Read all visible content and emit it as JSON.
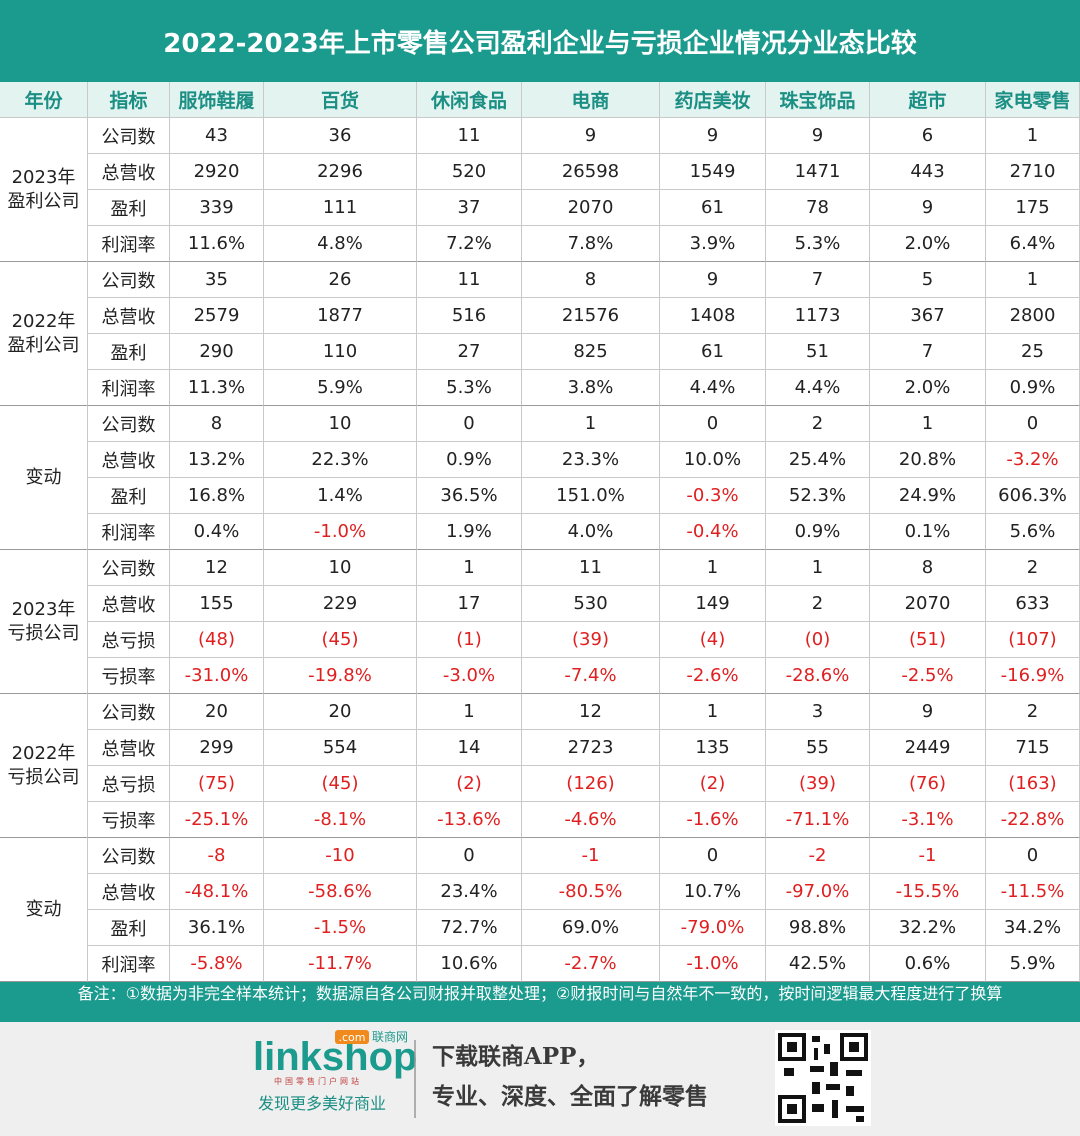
{
  "title": "2022-2023年上市零售公司盈利企业与亏损企业情况分业态比较",
  "table": {
    "header": [
      "年份",
      "指标",
      "服饰鞋履",
      "百货",
      "休闲食品",
      "电商",
      "药店美妆",
      "珠宝饰品",
      "超市",
      "家电零售"
    ],
    "groups": [
      {
        "label": [
          "2023年",
          "盈利公司"
        ],
        "rows": [
          {
            "metric": "公司数",
            "cells": [
              "43",
              "36",
              "11",
              "9",
              "9",
              "9",
              "6",
              "1"
            ]
          },
          {
            "metric": "总营收",
            "cells": [
              "2920",
              "2296",
              "520",
              "26598",
              "1549",
              "1471",
              "443",
              "2710"
            ]
          },
          {
            "metric": "盈利",
            "cells": [
              "339",
              "111",
              "37",
              "2070",
              "61",
              "78",
              "9",
              "175"
            ]
          },
          {
            "metric": "利润率",
            "cells": [
              "11.6%",
              "4.8%",
              "7.2%",
              "7.8%",
              "3.9%",
              "5.3%",
              "2.0%",
              "6.4%"
            ]
          }
        ]
      },
      {
        "label": [
          "2022年",
          "盈利公司"
        ],
        "rows": [
          {
            "metric": "公司数",
            "cells": [
              "35",
              "26",
              "11",
              "8",
              "9",
              "7",
              "5",
              "1"
            ]
          },
          {
            "metric": "总营收",
            "cells": [
              "2579",
              "1877",
              "516",
              "21576",
              "1408",
              "1173",
              "367",
              "2800"
            ]
          },
          {
            "metric": "盈利",
            "cells": [
              "290",
              "110",
              "27",
              "825",
              "61",
              "51",
              "7",
              "25"
            ]
          },
          {
            "metric": "利润率",
            "cells": [
              "11.3%",
              "5.9%",
              "5.3%",
              "3.8%",
              "4.4%",
              "4.4%",
              "2.0%",
              "0.9%"
            ]
          }
        ]
      },
      {
        "label": [
          "变动"
        ],
        "rows": [
          {
            "metric": "公司数",
            "cells": [
              "8",
              "10",
              "0",
              "1",
              "0",
              "2",
              "1",
              "0"
            ]
          },
          {
            "metric": "总营收",
            "cells": [
              "13.2%",
              "22.3%",
              "0.9%",
              "23.3%",
              "10.0%",
              "25.4%",
              "20.8%",
              "-3.2%"
            ]
          },
          {
            "metric": "盈利",
            "cells": [
              "16.8%",
              "1.4%",
              "36.5%",
              "151.0%",
              "-0.3%",
              "52.3%",
              "24.9%",
              "606.3%"
            ]
          },
          {
            "metric": "利润率",
            "cells": [
              "0.4%",
              "-1.0%",
              "1.9%",
              "4.0%",
              "-0.4%",
              "0.9%",
              "0.1%",
              "5.6%"
            ]
          }
        ]
      },
      {
        "label": [
          "2023年",
          "亏损公司"
        ],
        "rows": [
          {
            "metric": "公司数",
            "cells": [
              "12",
              "10",
              "1",
              "11",
              "1",
              "1",
              "8",
              "2"
            ]
          },
          {
            "metric": "总营收",
            "cells": [
              "155",
              "229",
              "17",
              "530",
              "149",
              "2",
              "2070",
              "633"
            ]
          },
          {
            "metric": "总亏损",
            "cells": [
              "(48)",
              "(45)",
              "(1)",
              "(39)",
              "(4)",
              "(0)",
              "(51)",
              "(107)"
            ]
          },
          {
            "metric": "亏损率",
            "cells": [
              "-31.0%",
              "-19.8%",
              "-3.0%",
              "-7.4%",
              "-2.6%",
              "-28.6%",
              "-2.5%",
              "-16.9%"
            ]
          }
        ]
      },
      {
        "label": [
          "2022年",
          "亏损公司"
        ],
        "rows": [
          {
            "metric": "公司数",
            "cells": [
              "20",
              "20",
              "1",
              "12",
              "1",
              "3",
              "9",
              "2"
            ]
          },
          {
            "metric": "总营收",
            "cells": [
              "299",
              "554",
              "14",
              "2723",
              "135",
              "55",
              "2449",
              "715"
            ]
          },
          {
            "metric": "总亏损",
            "cells": [
              "(75)",
              "(45)",
              "(2)",
              "(126)",
              "(2)",
              "(39)",
              "(76)",
              "(163)"
            ]
          },
          {
            "metric": "亏损率",
            "cells": [
              "-25.1%",
              "-8.1%",
              "-13.6%",
              "-4.6%",
              "-1.6%",
              "-71.1%",
              "-3.1%",
              "-22.8%"
            ]
          }
        ]
      },
      {
        "label": [
          "变动"
        ],
        "rows": [
          {
            "metric": "公司数",
            "cells": [
              "-8",
              "-10",
              "0",
              "-1",
              "0",
              "-2",
              "-1",
              "0"
            ]
          },
          {
            "metric": "总营收",
            "cells": [
              "-48.1%",
              "-58.6%",
              "23.4%",
              "-80.5%",
              "10.7%",
              "-97.0%",
              "-15.5%",
              "-11.5%"
            ]
          },
          {
            "metric": "盈利",
            "cells": [
              "36.1%",
              "-1.5%",
              "72.7%",
              "69.0%",
              "-79.0%",
              "98.8%",
              "32.2%",
              "34.2%"
            ]
          },
          {
            "metric": "利润率",
            "cells": [
              "-5.8%",
              "-11.7%",
              "10.6%",
              "-2.7%",
              "-1.0%",
              "42.5%",
              "0.6%",
              "5.9%"
            ]
          }
        ]
      }
    ]
  },
  "note": "备注：①数据为非完全样本统计；数据源自各公司财报并取整处理；②财报时间与自然年不一致的，按时间逻辑最大程度进行了换算",
  "footer": {
    "logo": "linkshop",
    "logo_com": ".com",
    "logo_cn": "联商网",
    "logo_sub": "中国零售门户网站",
    "slogan": "发现更多美好商业",
    "promo": [
      "下载联商APP，",
      "专业、深度、全面了解零售"
    ]
  }
}
